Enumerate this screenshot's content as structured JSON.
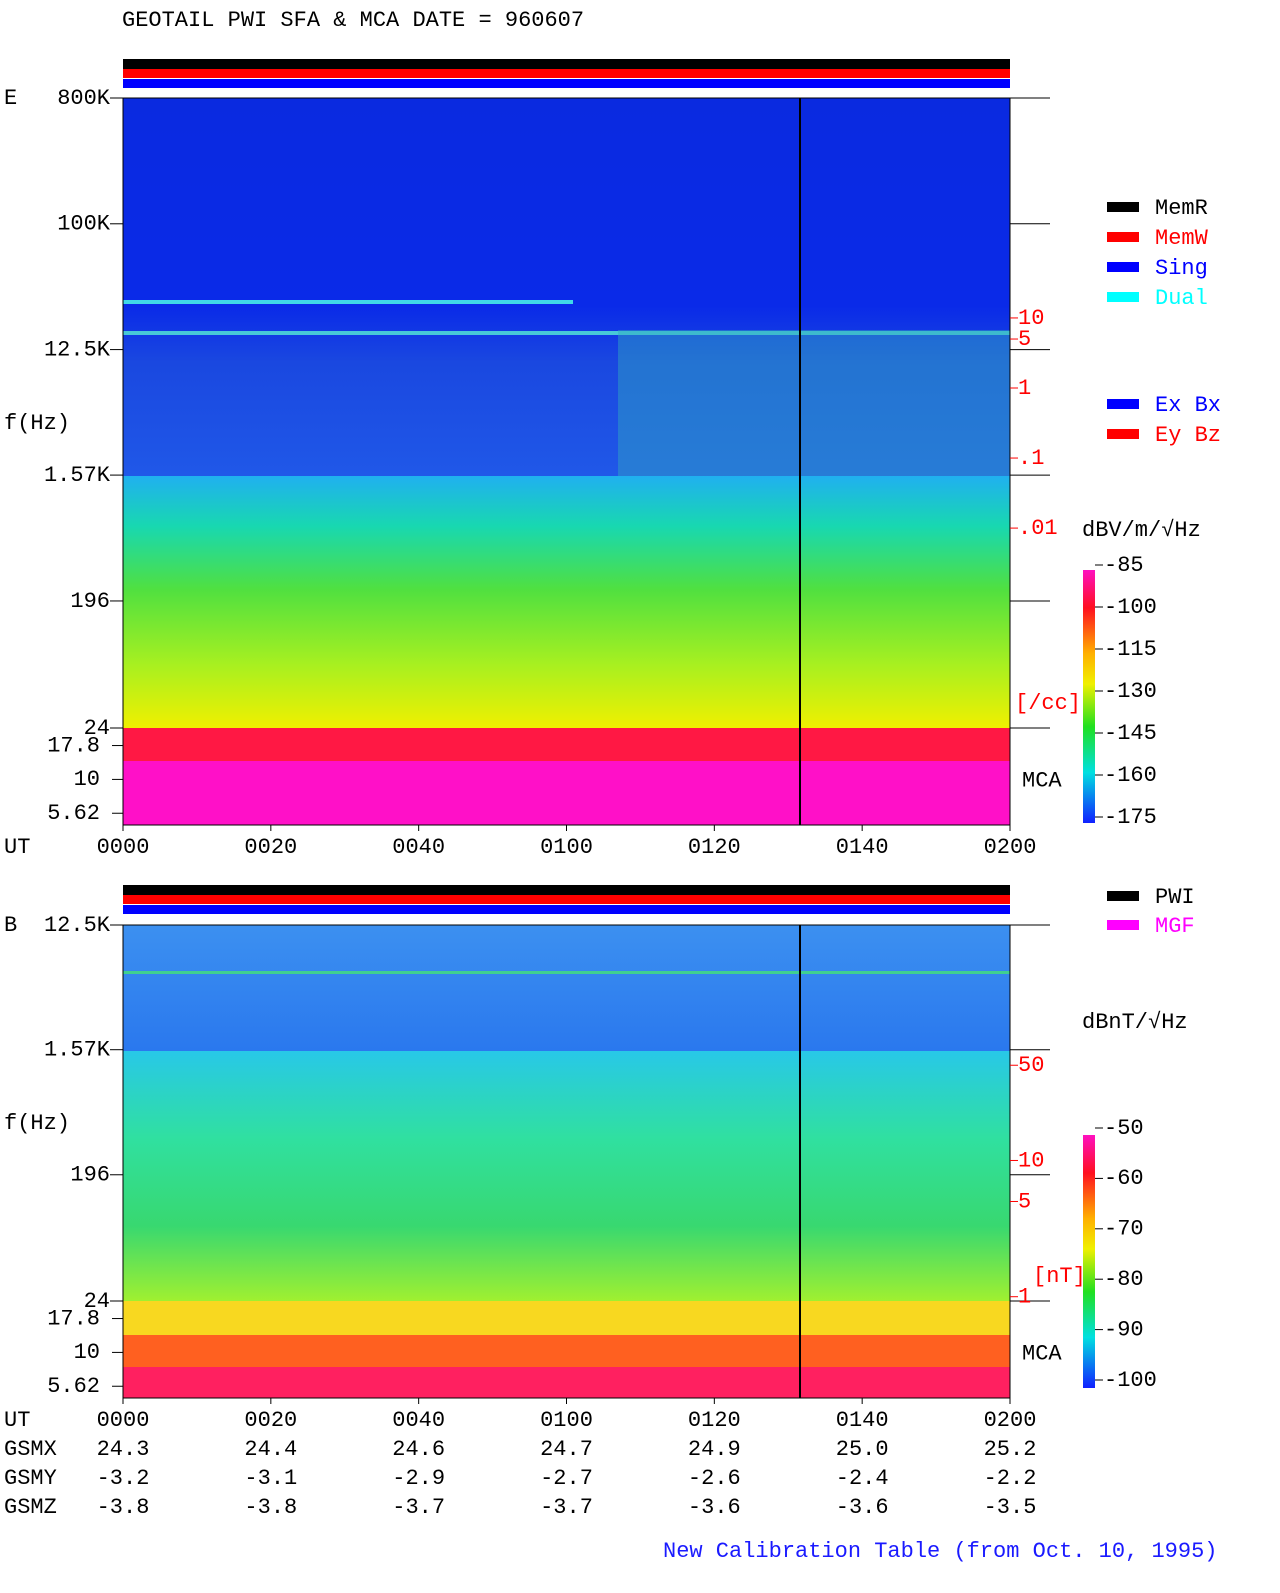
{
  "title": "GEOTAIL   PWI SFA & MCA    DATE = 960607",
  "footer": "New Calibration Table (from Oct. 10, 1995)",
  "chart_data": [
    {
      "type": "spectrogram",
      "panel_label": "E",
      "y_label": "f(Hz)",
      "x_label": "UT",
      "mca_label": "MCA",
      "log_y": true,
      "xlim": [
        0,
        120
      ],
      "xticks": [
        {
          "value": 0,
          "label": "0000"
        },
        {
          "value": 20,
          "label": "0020"
        },
        {
          "value": 40,
          "label": "0040"
        },
        {
          "value": 60,
          "label": "0100"
        },
        {
          "value": 80,
          "label": "0120"
        },
        {
          "value": 100,
          "label": "0140"
        },
        {
          "value": 120,
          "label": "0200"
        }
      ],
      "ylim": [
        24,
        800000
      ],
      "yticks": [
        {
          "value": 800000,
          "label": "800K"
        },
        {
          "value": 100000,
          "label": "100K"
        },
        {
          "value": 12500,
          "label": "12.5K"
        },
        {
          "value": 1570,
          "label": "1.57K"
        },
        196,
        24
      ],
      "mca_lim": [
        4.6,
        24
      ],
      "mca_ticks": [
        17.8,
        10,
        5.62
      ],
      "density_label": "[/cc]",
      "density_lim": [
        1.4e-05,
        13800
      ],
      "density_ticks": [
        10,
        5,
        1,
        {
          "value": 0.1,
          "label": ".1"
        },
        {
          "value": 0.01,
          "label": ".01"
        }
      ],
      "colorbar_label": "dBV/m/√Hz",
      "colorbar_lim": [
        -175,
        -85
      ],
      "colorbar_ticks": [
        -85,
        -100,
        -115,
        -130,
        -145,
        -160,
        -175
      ],
      "legends": [
        [
          {
            "name": "MemR",
            "color": "#000000"
          },
          {
            "name": "MemW",
            "color": "#ff0000"
          },
          {
            "name": "Sing",
            "color": "#0000ff"
          },
          {
            "name": "Dual",
            "color": "#00ffff"
          }
        ],
        [
          {
            "name": "Ex Bx",
            "color": "#0000ff"
          },
          {
            "name": "Ey Bz",
            "color": "#ff0000"
          }
        ]
      ]
    },
    {
      "type": "spectrogram",
      "panel_label": "B",
      "y_label": "f(Hz)",
      "x_label": "UT",
      "mca_label": "MCA",
      "log_y": true,
      "xlim": [
        0,
        120
      ],
      "xticks": [
        {
          "value": 0,
          "label": "0000"
        },
        {
          "value": 20,
          "label": "0020"
        },
        {
          "value": 40,
          "label": "0040"
        },
        {
          "value": 60,
          "label": "0100"
        },
        {
          "value": 80,
          "label": "0120"
        },
        {
          "value": 100,
          "label": "0140"
        },
        {
          "value": 120,
          "label": "0200"
        }
      ],
      "ylim": [
        24,
        12500
      ],
      "yticks": [
        {
          "value": 12500,
          "label": "12.5K"
        },
        {
          "value": 1570,
          "label": "1.57K"
        },
        196,
        24
      ],
      "mca_lim": [
        4.6,
        24
      ],
      "mca_ticks": [
        17.8,
        10,
        5.62
      ],
      "density_label": "[nT]",
      "density_lim": [
        0.93,
        535
      ],
      "density_ticks": [
        50,
        10,
        5,
        1
      ],
      "colorbar_label": "dBnT/√Hz",
      "colorbar_lim": [
        -100,
        -50
      ],
      "colorbar_ticks": [
        -50,
        -60,
        -70,
        -80,
        -90,
        -100
      ],
      "legends": [
        [
          {
            "name": "PWI",
            "color": "#000000"
          },
          {
            "name": "MGF",
            "color": "#ff00ff"
          }
        ]
      ],
      "orbit": [
        {
          "name": "GSMX",
          "values": [
            24.3,
            24.4,
            24.6,
            24.7,
            24.9,
            25.0,
            25.2
          ],
          "value_labels": [
            "24.3",
            "24.4",
            "24.6",
            "24.7",
            "24.9",
            "25.0",
            "25.2"
          ]
        },
        {
          "name": "GSMY",
          "values": [
            -3.2,
            -3.1,
            -2.9,
            -2.7,
            -2.6,
            -2.4,
            -2.2
          ],
          "value_labels": [
            "-3.2",
            "-3.1",
            "-2.9",
            "-2.7",
            "-2.6",
            "-2.4",
            "-2.2"
          ]
        },
        {
          "name": "GSMZ",
          "values": [
            -3.8,
            -3.8,
            -3.7,
            -3.7,
            -3.6,
            -3.6,
            -3.5
          ],
          "value_labels": [
            "-3.8",
            "-3.8",
            "-3.7",
            "-3.7",
            "-3.6",
            "-3.6",
            "-3.5"
          ]
        }
      ]
    }
  ]
}
